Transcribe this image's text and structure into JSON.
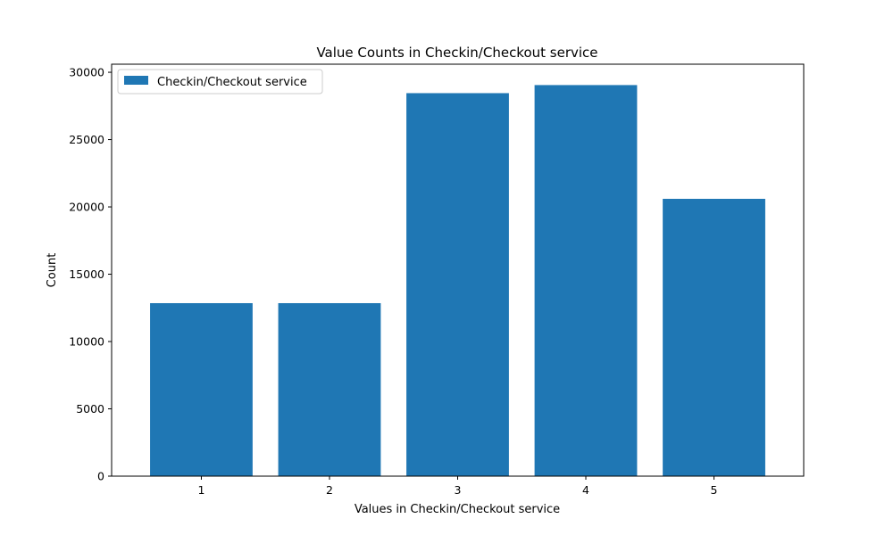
{
  "chart_data": {
    "type": "bar",
    "title": "Value Counts in Checkin/Checkout service",
    "xlabel": "Values in Checkin/Checkout service",
    "ylabel": "Count",
    "categories": [
      "1",
      "2",
      "3",
      "4",
      "5"
    ],
    "series": [
      {
        "name": "Checkin/Checkout service",
        "values": [
          12850,
          12850,
          28450,
          29050,
          20600
        ],
        "color": "#1f77b4"
      }
    ],
    "ylim": [
      0,
      30600
    ],
    "yticks": [
      0,
      5000,
      10000,
      15000,
      20000,
      25000,
      30000
    ],
    "grid": false,
    "legend": "top-left"
  }
}
